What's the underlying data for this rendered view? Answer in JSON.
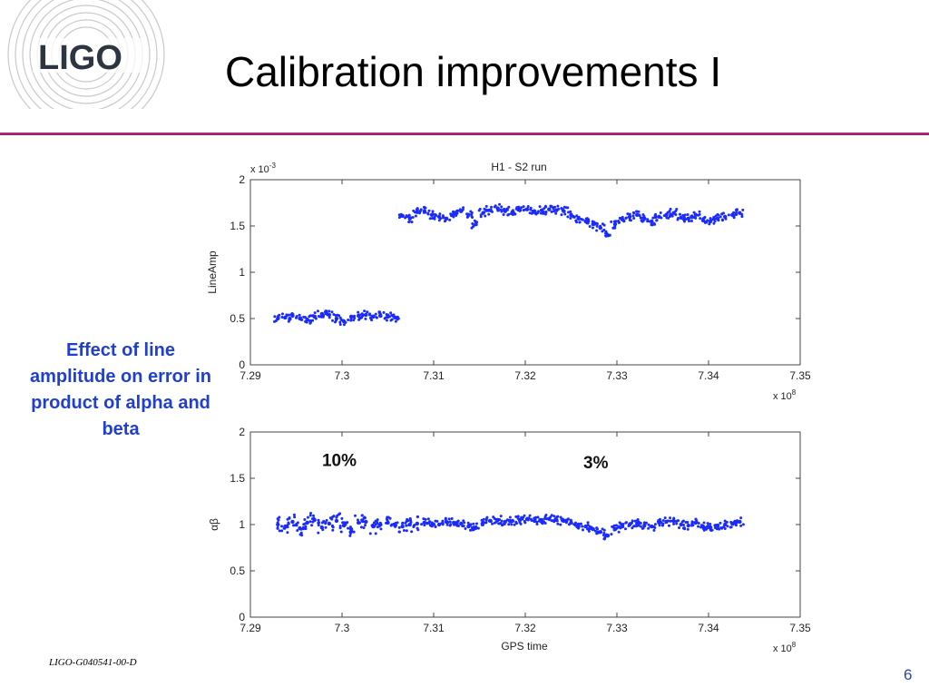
{
  "slide": {
    "title": "Calibration improvements I",
    "logo_text": "LIGO",
    "side_note": "Effect of line amplitude on error in product of alpha and beta",
    "footer_id": "LIGO-G040541-00-D",
    "page_number": "6",
    "accent_color": "#b3247a",
    "note_color": "#1f3fd0"
  },
  "chart_data": [
    {
      "type": "scatter",
      "title": "H1 - S2 run",
      "xlabel": "",
      "ylabel": "LineAmp",
      "x_multiplier": "x 10",
      "x_multiplier_exp": "8",
      "y_multiplier": "x 10",
      "y_multiplier_exp": "-3",
      "xlim": [
        7.29,
        7.35
      ],
      "ylim": [
        0,
        2
      ],
      "xticks": [
        "7.29",
        "7.3",
        "7.31",
        "7.32",
        "7.33",
        "7.34",
        "7.35"
      ],
      "yticks": [
        "0",
        "0.5",
        "1",
        "1.5",
        "2"
      ],
      "grid": false,
      "marker_color": "#1a2bff",
      "series": [
        {
          "x": [
            7.293,
            7.2938,
            7.2946,
            7.2954,
            7.2962,
            7.297,
            7.2978,
            7.2986,
            7.2994,
            7.3002,
            7.301,
            7.3018,
            7.3026,
            7.3034,
            7.3042,
            7.305,
            7.3058,
            7.3066,
            7.3074,
            7.3082,
            7.309,
            7.3098,
            7.3106,
            7.3114,
            7.3122,
            7.313,
            7.3138,
            7.3146,
            7.3154,
            7.3162,
            7.317,
            7.3178,
            7.3186,
            7.3194,
            7.3202,
            7.321,
            7.3218,
            7.3226,
            7.3234,
            7.3242,
            7.325,
            7.3258,
            7.3266,
            7.3274,
            7.3282,
            7.329,
            7.3298,
            7.3306,
            7.3314,
            7.3322,
            7.333,
            7.3338,
            7.3346,
            7.3354,
            7.3362,
            7.337,
            7.3378,
            7.3386,
            7.3394,
            7.3402,
            7.341,
            7.3418,
            7.3426,
            7.3434
          ],
          "y": [
            0.5,
            0.51,
            0.53,
            0.5,
            0.49,
            0.52,
            0.55,
            0.54,
            0.5,
            0.47,
            0.52,
            0.53,
            0.54,
            0.52,
            0.53,
            0.52,
            0.51,
            1.61,
            1.58,
            1.65,
            1.66,
            1.62,
            1.6,
            1.58,
            1.63,
            1.66,
            1.62,
            1.52,
            1.64,
            1.67,
            1.69,
            1.66,
            1.65,
            1.67,
            1.68,
            1.66,
            1.67,
            1.68,
            1.67,
            1.66,
            1.62,
            1.58,
            1.55,
            1.52,
            1.48,
            1.4,
            1.52,
            1.57,
            1.6,
            1.62,
            1.58,
            1.55,
            1.6,
            1.62,
            1.64,
            1.59,
            1.58,
            1.62,
            1.56,
            1.55,
            1.58,
            1.6,
            1.62,
            1.64
          ]
        }
      ]
    },
    {
      "type": "scatter",
      "title": "",
      "xlabel": "GPS time",
      "ylabel": "αβ",
      "x_multiplier": "x 10",
      "x_multiplier_exp": "8",
      "xlim": [
        7.29,
        7.35
      ],
      "ylim": [
        0,
        2
      ],
      "xticks": [
        "7.29",
        "7.3",
        "7.31",
        "7.32",
        "7.33",
        "7.34",
        "7.35"
      ],
      "yticks": [
        "0",
        "0.5",
        "1",
        "1.5",
        "2"
      ],
      "grid": false,
      "marker_color": "#1a2bff",
      "annotations": [
        {
          "text": "10%",
          "x": 7.2997,
          "y": 1.63
        },
        {
          "text": "3%",
          "x": 7.3277,
          "y": 1.61
        }
      ],
      "series": [
        {
          "x": [
            7.293,
            7.2938,
            7.2946,
            7.2954,
            7.2962,
            7.297,
            7.2978,
            7.2986,
            7.2994,
            7.3002,
            7.301,
            7.3018,
            7.3026,
            7.3034,
            7.3042,
            7.305,
            7.3058,
            7.3066,
            7.3074,
            7.3082,
            7.309,
            7.3098,
            7.3106,
            7.3114,
            7.3122,
            7.313,
            7.3138,
            7.3146,
            7.3154,
            7.3162,
            7.317,
            7.3178,
            7.3186,
            7.3194,
            7.3202,
            7.321,
            7.3218,
            7.3226,
            7.3234,
            7.3242,
            7.325,
            7.3258,
            7.3266,
            7.3274,
            7.3282,
            7.329,
            7.3298,
            7.3306,
            7.3314,
            7.3322,
            7.333,
            7.3338,
            7.3346,
            7.3354,
            7.3362,
            7.337,
            7.3378,
            7.3386,
            7.3394,
            7.3402,
            7.341,
            7.3418,
            7.3426,
            7.3434
          ],
          "y": [
            1.0,
            0.98,
            1.03,
            0.96,
            1.02,
            1.05,
            0.97,
            1.01,
            1.04,
            0.99,
            0.95,
            1.02,
            1.03,
            0.98,
            1.0,
            1.02,
            0.99,
            0.98,
            1.0,
            1.01,
            1.02,
            0.99,
            1.0,
            1.03,
            1.02,
            1.01,
            0.98,
            0.97,
            1.02,
            1.04,
            1.05,
            1.03,
            1.04,
            1.05,
            1.06,
            1.04,
            1.05,
            1.06,
            1.05,
            1.04,
            1.02,
            1.0,
            0.98,
            0.95,
            0.92,
            0.88,
            0.95,
            0.98,
            1.0,
            1.01,
            0.99,
            0.98,
            1.02,
            1.03,
            1.04,
            1.0,
            0.99,
            1.02,
            0.98,
            0.97,
            0.99,
            1.0,
            1.01,
            1.03
          ]
        }
      ]
    }
  ]
}
